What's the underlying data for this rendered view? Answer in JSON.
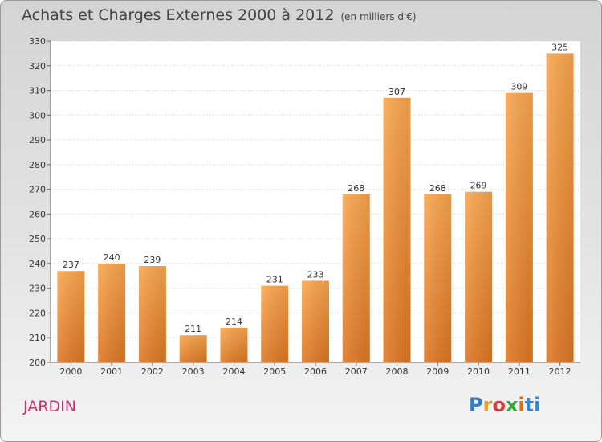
{
  "header": {
    "title": "Achats et Charges Externes 2000 à 2012",
    "unit": "(en milliers d'€)"
  },
  "footer": {
    "city": "JARDIN",
    "logo_letters": [
      "P",
      "r",
      "o",
      "x",
      "i",
      "ti"
    ]
  },
  "colors": {
    "bar_top": "#f9a54e",
    "bar_bottom": "#dd7722",
    "city": "#d0306b"
  },
  "chart_data": {
    "type": "bar",
    "categories": [
      "2000",
      "2001",
      "2002",
      "2003",
      "2004",
      "2005",
      "2006",
      "2007",
      "2008",
      "2009",
      "2010",
      "2011",
      "2012"
    ],
    "values": [
      237,
      240,
      239,
      211,
      214,
      231,
      233,
      268,
      307,
      268,
      269,
      309,
      325
    ],
    "ylim": [
      200,
      330
    ],
    "yticks": [
      200,
      210,
      220,
      230,
      240,
      250,
      260,
      270,
      280,
      290,
      300,
      310,
      320,
      330
    ],
    "grid": true
  }
}
